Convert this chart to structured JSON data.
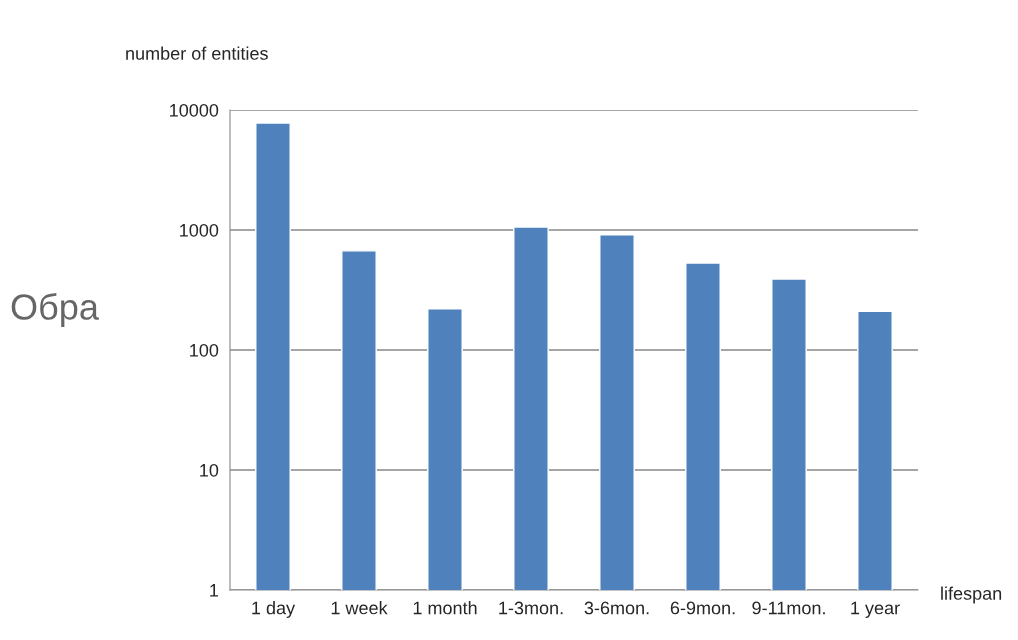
{
  "chart_data": {
    "type": "bar",
    "ylabel": "number of entities",
    "xlabel": "lifespan",
    "categories": [
      "1 day",
      "1 week",
      "1 month",
      "1-3mon.",
      "3-6mon.",
      "6-9mon.",
      "9-11mon.",
      "1 year"
    ],
    "values": [
      7800,
      670,
      220,
      1060,
      910,
      530,
      390,
      210
    ],
    "color": "#4f81bd",
    "log": true,
    "ylim": [
      1,
      10000
    ],
    "yticks": [
      1,
      10,
      100,
      1000,
      10000
    ],
    "grid": "y",
    "annotations": [
      "Обра"
    ]
  }
}
